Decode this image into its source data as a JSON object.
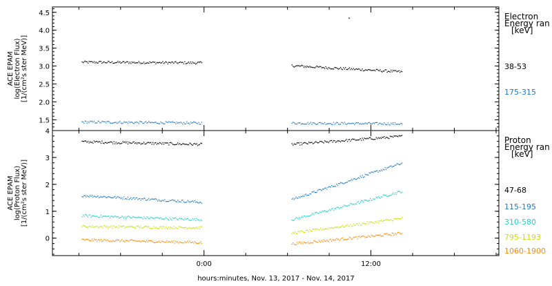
{
  "chart_data": [
    {
      "type": "scatter",
      "panel": "electron",
      "ylabel": [
        "ACE EPAM",
        "log(Electron Flux)",
        "[1/(cm²s ster MeV)]"
      ],
      "ylim": [
        1.2,
        4.65
      ],
      "yticks": [
        "1.5",
        "2.0",
        "2.5",
        "3.0",
        "3.5",
        "4.0",
        "4.5"
      ],
      "ytick_values": [
        1.5,
        2.0,
        2.5,
        3.0,
        3.5,
        4.0,
        4.5
      ],
      "legend_title": [
        "Electron",
        "Energy ran",
        "[keV]"
      ],
      "series": [
        {
          "name": "38-53",
          "color": "#000000",
          "segments": [
            {
              "x": [
                -8.8,
                -0.2
              ],
              "y": [
                3.12,
                3.1
              ]
            },
            {
              "x": [
                6.3,
                14.2
              ],
              "y": [
                3.02,
                2.85
              ]
            }
          ]
        },
        {
          "name": "175-315",
          "color": "#1f78c8",
          "segments": [
            {
              "x": [
                -8.8,
                -0.2
              ],
              "y": [
                1.45,
                1.42
              ]
            },
            {
              "x": [
                6.3,
                14.2
              ],
              "y": [
                1.42,
                1.4
              ]
            }
          ]
        }
      ],
      "outliers": [
        {
          "x": 10.4,
          "y": 4.35,
          "color": "#000000"
        }
      ]
    },
    {
      "type": "scatter",
      "panel": "proton",
      "ylabel": [
        "ACE EPAM",
        "log(Proton Flux)",
        "[1/(cm²s ster MeV)]"
      ],
      "ylim": [
        -0.65,
        4.0
      ],
      "yticks": [
        "0",
        "1",
        "2",
        "3",
        "4"
      ],
      "ytick_values": [
        0,
        1,
        2,
        3,
        4
      ],
      "legend_title": [
        "Proton",
        "Energy ran",
        "[keV]"
      ],
      "series": [
        {
          "name": "47-68",
          "color": "#000000",
          "segments": [
            {
              "x": [
                -8.8,
                -0.2
              ],
              "y": [
                3.6,
                3.5
              ]
            },
            {
              "x": [
                6.3,
                14.2
              ],
              "y": [
                3.5,
                3.8
              ]
            }
          ]
        },
        {
          "name": "115-195",
          "color": "#1f78c8",
          "segments": [
            {
              "x": [
                -8.8,
                -0.2
              ],
              "y": [
                1.6,
                1.35
              ]
            },
            {
              "x": [
                6.3,
                14.2
              ],
              "y": [
                1.45,
                2.8
              ]
            }
          ]
        },
        {
          "name": "310-580",
          "color": "#22cccc",
          "segments": [
            {
              "x": [
                -8.8,
                -0.2
              ],
              "y": [
                0.85,
                0.7
              ]
            },
            {
              "x": [
                6.3,
                14.2
              ],
              "y": [
                0.7,
                1.75
              ]
            }
          ]
        },
        {
          "name": "795-1193",
          "color": "#c8e000",
          "segments": [
            {
              "x": [
                -8.8,
                -0.2
              ],
              "y": [
                0.45,
                0.4
              ]
            },
            {
              "x": [
                6.3,
                14.2
              ],
              "y": [
                0.2,
                0.75
              ]
            }
          ]
        },
        {
          "name": "1060-1900",
          "color": "#ff8800",
          "segments": [
            {
              "x": [
                -8.8,
                -0.2
              ],
              "y": [
                -0.05,
                -0.15
              ]
            },
            {
              "x": [
                6.3,
                14.2
              ],
              "y": [
                -0.2,
                0.2
              ]
            }
          ]
        }
      ]
    }
  ],
  "xaxis": {
    "label": "hours:minutes, Nov. 13, 2017 - Nov. 14, 2017",
    "tick_labels": [
      "0:00",
      "12:00"
    ],
    "tick_values": [
      0,
      12
    ]
  }
}
